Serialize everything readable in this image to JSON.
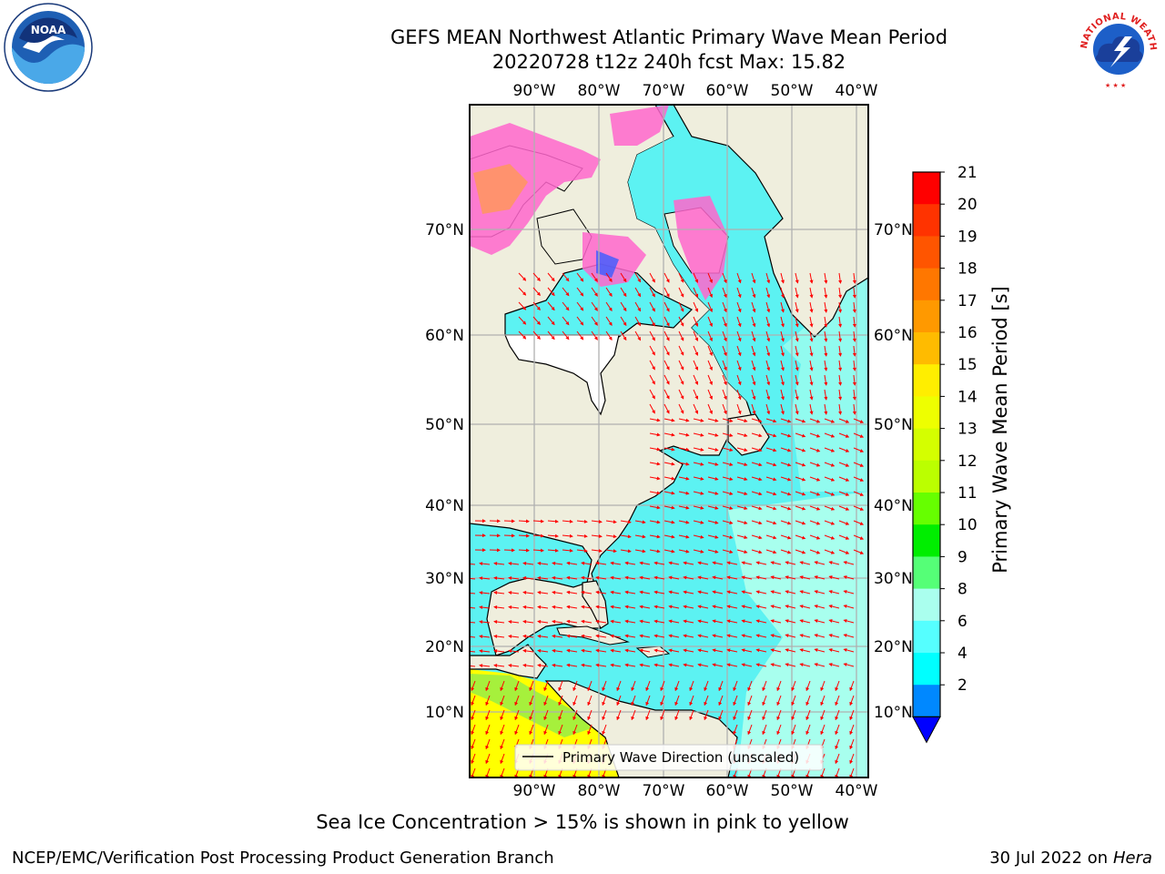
{
  "header": {
    "title_line1": "GEFS MEAN Northwest Atlantic Primary Wave Mean Period",
    "title_line2": "20220728 t12z 240h fcst   Max: 15.82"
  },
  "logos": {
    "left_text": "NOAA",
    "right_text": "NATIONAL WEATHER SERVICE"
  },
  "axes": {
    "lon_labels": [
      "90°W",
      "80°W",
      "70°W",
      "60°W",
      "50°W",
      "40°W"
    ],
    "lat_labels": [
      "70°N",
      "60°N",
      "50°N",
      "40°N",
      "30°N",
      "20°N",
      "10°N"
    ]
  },
  "legend": {
    "label": "Primary Wave Direction (unscaled)"
  },
  "colorbar": {
    "title": "Primary Wave Mean Period [s]",
    "ticks": [
      "21",
      "20",
      "19",
      "18",
      "17",
      "16",
      "15",
      "14",
      "13",
      "12",
      "11",
      "10",
      "9",
      "8",
      "6",
      "4",
      "2"
    ],
    "colors": [
      "#ff0000",
      "#ff3300",
      "#ff5500",
      "#ff7700",
      "#ff9900",
      "#ffbb00",
      "#ffee00",
      "#eeff00",
      "#d4ff00",
      "#bbff00",
      "#66ff00",
      "#00ee00",
      "#55ff77",
      "#aaffee",
      "#55ffff",
      "#00ffff",
      "#0088ff"
    ],
    "under_color": "#0000ff"
  },
  "caption": "Sea Ice Concentration > 15% is shown in pink to yellow",
  "footer": {
    "left": "NCEP/EMC/Verification Post Processing Product Generation Branch",
    "right_prefix": "30 Jul 2022 on ",
    "right_machine": "Hera"
  }
}
